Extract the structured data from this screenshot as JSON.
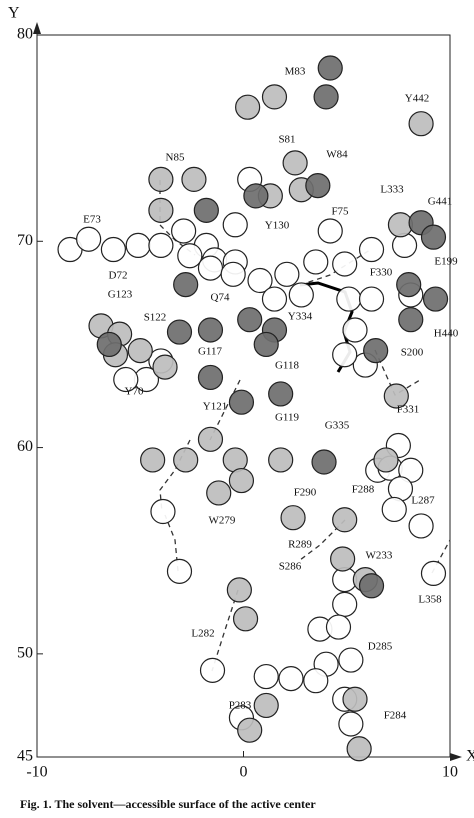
{
  "chart_data": {
    "type": "scatter",
    "x_label": "X",
    "y_label": "Y",
    "xlim": [
      -10,
      10
    ],
    "ylim": [
      45,
      80
    ],
    "xticks": [
      -10,
      0,
      10
    ],
    "yticks": [
      45,
      50,
      60,
      70,
      80
    ],
    "series": [
      {
        "color": "#ffffff",
        "x": [
          0.3,
          -0.4,
          -2.9,
          -1.8,
          -2.6,
          -1.4,
          -0.4,
          -1.6,
          -0.5,
          0.8,
          2.1,
          2.8,
          1.5,
          3.5,
          4.2,
          4.9,
          6.2,
          5.1,
          6.2,
          5.4,
          5.9,
          4.9,
          7.8,
          8.1,
          -8.4,
          -7.5,
          -6.3,
          -5.1,
          -4.0,
          -4.0,
          -4.7,
          -5.7,
          -3.9,
          -3.1,
          6.5,
          7.5,
          7.1,
          8.1,
          7.6,
          7.3,
          8.6,
          4.9,
          4.9,
          9.2,
          3.7,
          4.6,
          4.0,
          5.2,
          -1.5,
          1.1,
          2.3,
          3.5,
          4.9,
          5.2,
          -0.1
        ],
        "values": [
          73.0,
          70.8,
          70.5,
          69.8,
          69.3,
          69.1,
          69.0,
          68.7,
          68.4,
          68.1,
          68.4,
          67.4,
          67.2,
          69.0,
          70.5,
          68.9,
          69.6,
          67.2,
          67.2,
          65.7,
          64.0,
          64.5,
          69.8,
          67.4,
          69.6,
          70.1,
          69.6,
          69.8,
          69.8,
          64.2,
          63.3,
          63.3,
          56.9,
          54.0,
          58.9,
          60.1,
          59.0,
          58.9,
          58.0,
          57.0,
          56.2,
          53.6,
          52.4,
          53.9,
          51.2,
          51.3,
          49.5,
          49.7,
          49.2,
          48.9,
          48.8,
          48.7,
          47.8,
          46.6,
          46.9
        ]
      },
      {
        "color": "#bdbdbd",
        "x": [
          0.2,
          1.5,
          8.6,
          2.5,
          -4.0,
          -2.4,
          1.3,
          2.8,
          -4.0,
          7.6,
          -6.9,
          -6.0,
          -5.0,
          -6.2,
          -4.4,
          -2.8,
          -1.6,
          -0.4,
          -0.1,
          -1.2,
          1.8,
          2.4,
          4.9,
          -0.2,
          0.1,
          1.1,
          0.3,
          5.4,
          5.6,
          4.8,
          5.9,
          6.9,
          7.4,
          -3.8
        ],
        "values": [
          76.5,
          77.0,
          75.7,
          73.8,
          73.0,
          73.0,
          72.2,
          72.5,
          71.5,
          70.8,
          65.9,
          65.5,
          64.7,
          64.5,
          59.4,
          59.4,
          60.4,
          59.4,
          58.4,
          57.8,
          59.4,
          56.6,
          56.5,
          53.1,
          51.7,
          47.5,
          46.3,
          47.8,
          45.4,
          54.6,
          53.6,
          59.4,
          62.5,
          63.9
        ]
      },
      {
        "color": "#6e6e6e",
        "x": [
          4.0,
          4.2,
          0.6,
          3.6,
          -1.8,
          -2.8,
          -3.1,
          -1.6,
          -1.6,
          -0.1,
          1.8,
          0.3,
          1.5,
          1.1,
          6.4,
          8.6,
          9.2,
          8.0,
          8.1,
          9.3,
          3.9,
          6.2,
          -6.5
        ],
        "values": [
          77.0,
          78.4,
          72.2,
          72.7,
          71.5,
          67.9,
          65.6,
          65.7,
          63.4,
          62.2,
          62.6,
          66.2,
          65.7,
          65.0,
          64.7,
          70.9,
          70.2,
          67.9,
          66.2,
          67.2,
          59.3,
          53.3,
          65.0
        ]
      }
    ],
    "annotations": [
      "M83",
      "Y442",
      "S81",
      "W84",
      "N85",
      "L333",
      "G441",
      "E73",
      "Y130",
      "F75",
      "D72",
      "E199",
      "F330",
      "G123",
      "Q74",
      "S122",
      "Y334",
      "H440",
      "G117",
      "S200",
      "G118",
      "Y70",
      "F331",
      "Y121",
      "G119",
      "G335",
      "F290",
      "W279",
      "F288",
      "L287",
      "R289",
      "S286",
      "W233",
      "L358",
      "L282",
      "D285",
      "P283",
      "F284"
    ],
    "caption": "Fig. 1. The solvent—accessible surface of the active center"
  }
}
